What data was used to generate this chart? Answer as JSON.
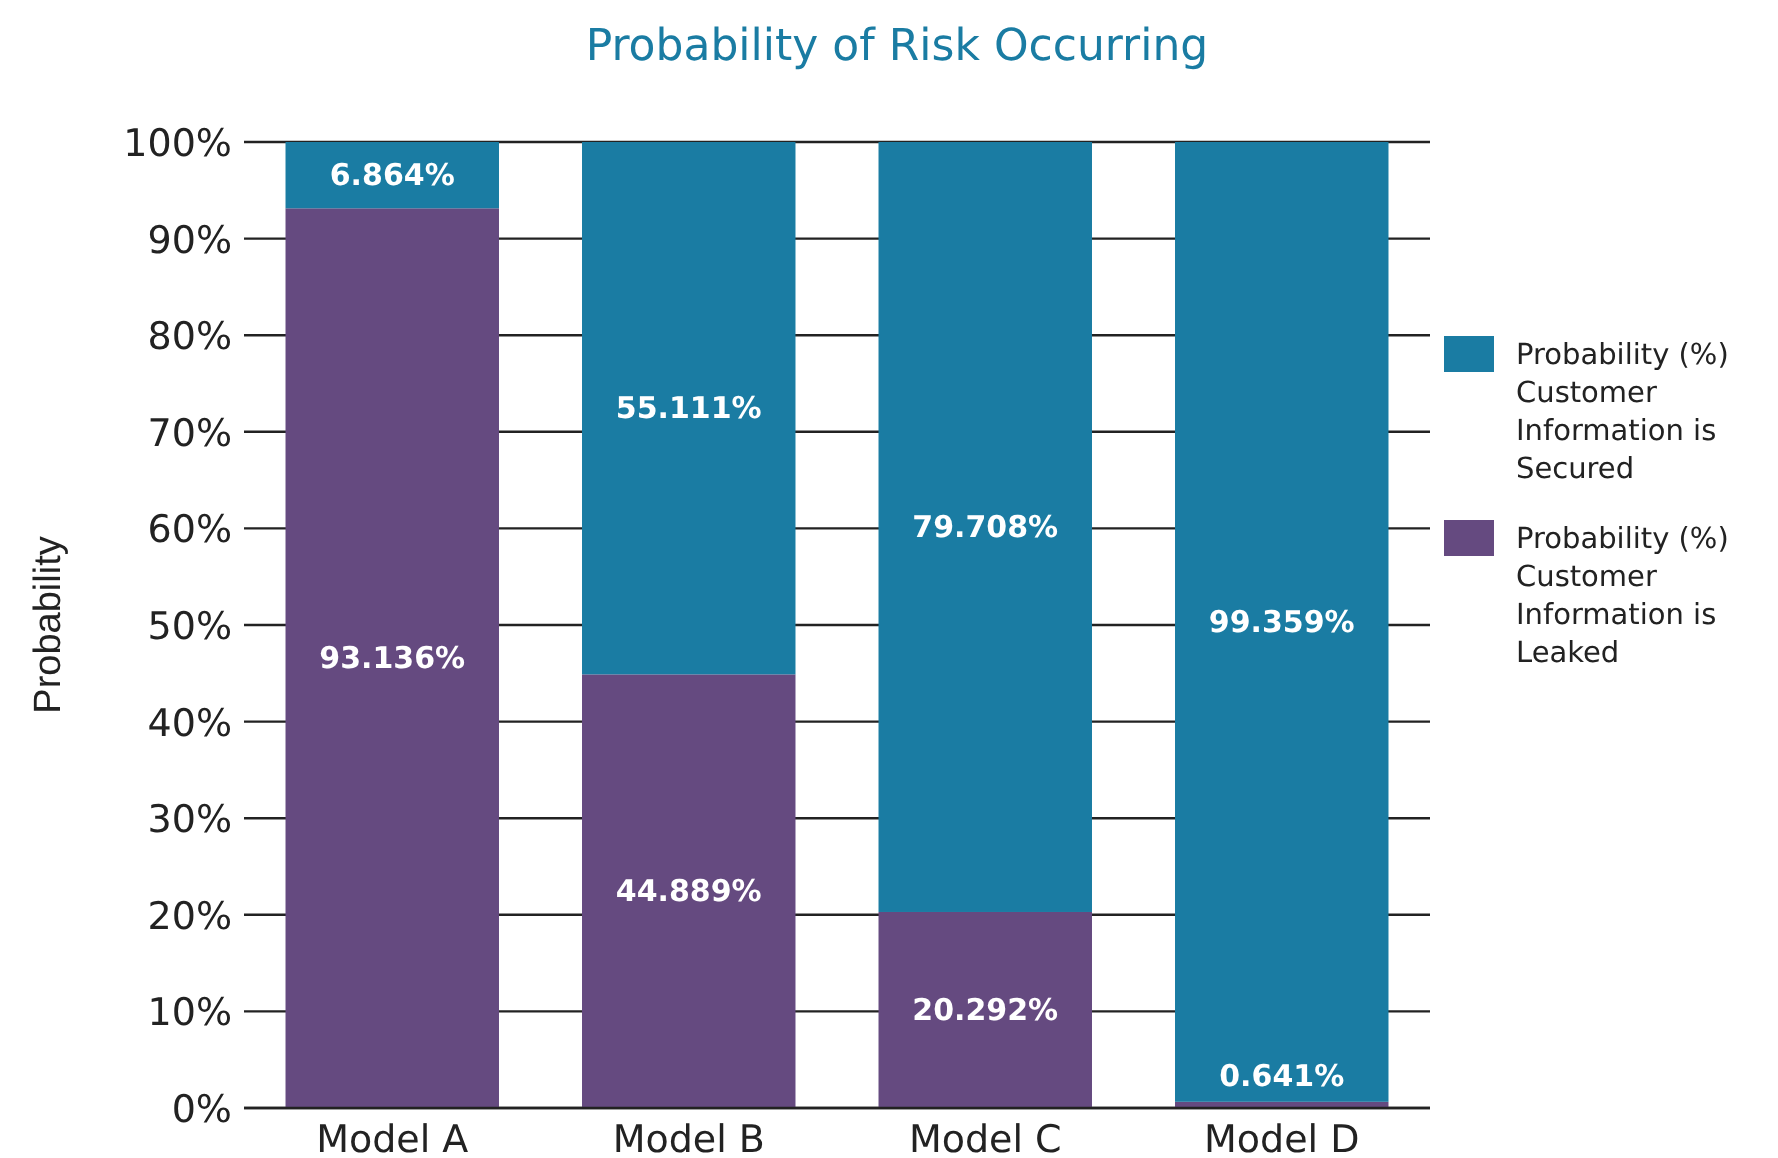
{
  "chart_data": {
    "type": "bar",
    "stacked": true,
    "title": "Probability of Risk Occurring",
    "ylabel": "Probability",
    "categories": [
      "Model A",
      "Model B",
      "Model C",
      "Model D"
    ],
    "series": [
      {
        "name": "Probability (%) Customer Information is Leaked",
        "color": "#654a80",
        "values": [
          93.136,
          44.889,
          20.292,
          0.641
        ],
        "value_labels": [
          "93.136%",
          "44.889%",
          "20.292%",
          "0.641%"
        ]
      },
      {
        "name": "Probability (%) Customer Information is Secured",
        "color": "#1a7ca3",
        "values": [
          6.864,
          55.111,
          79.708,
          99.359
        ],
        "value_labels": [
          "6.864%",
          "55.111%",
          "79.708%",
          "99.359%"
        ]
      }
    ],
    "ylim": [
      0,
      100
    ],
    "yticks": [
      {
        "value": 0,
        "label": "0%"
      },
      {
        "value": 10,
        "label": "10%"
      },
      {
        "value": 20,
        "label": "20%"
      },
      {
        "value": 30,
        "label": "30%"
      },
      {
        "value": 40,
        "label": "40%"
      },
      {
        "value": 50,
        "label": "50%"
      },
      {
        "value": 60,
        "label": "60%"
      },
      {
        "value": 70,
        "label": "70%"
      },
      {
        "value": 80,
        "label": "80%"
      },
      {
        "value": 90,
        "label": "90%"
      },
      {
        "value": 100,
        "label": "100%"
      }
    ],
    "grid": "y",
    "legend": "right"
  }
}
